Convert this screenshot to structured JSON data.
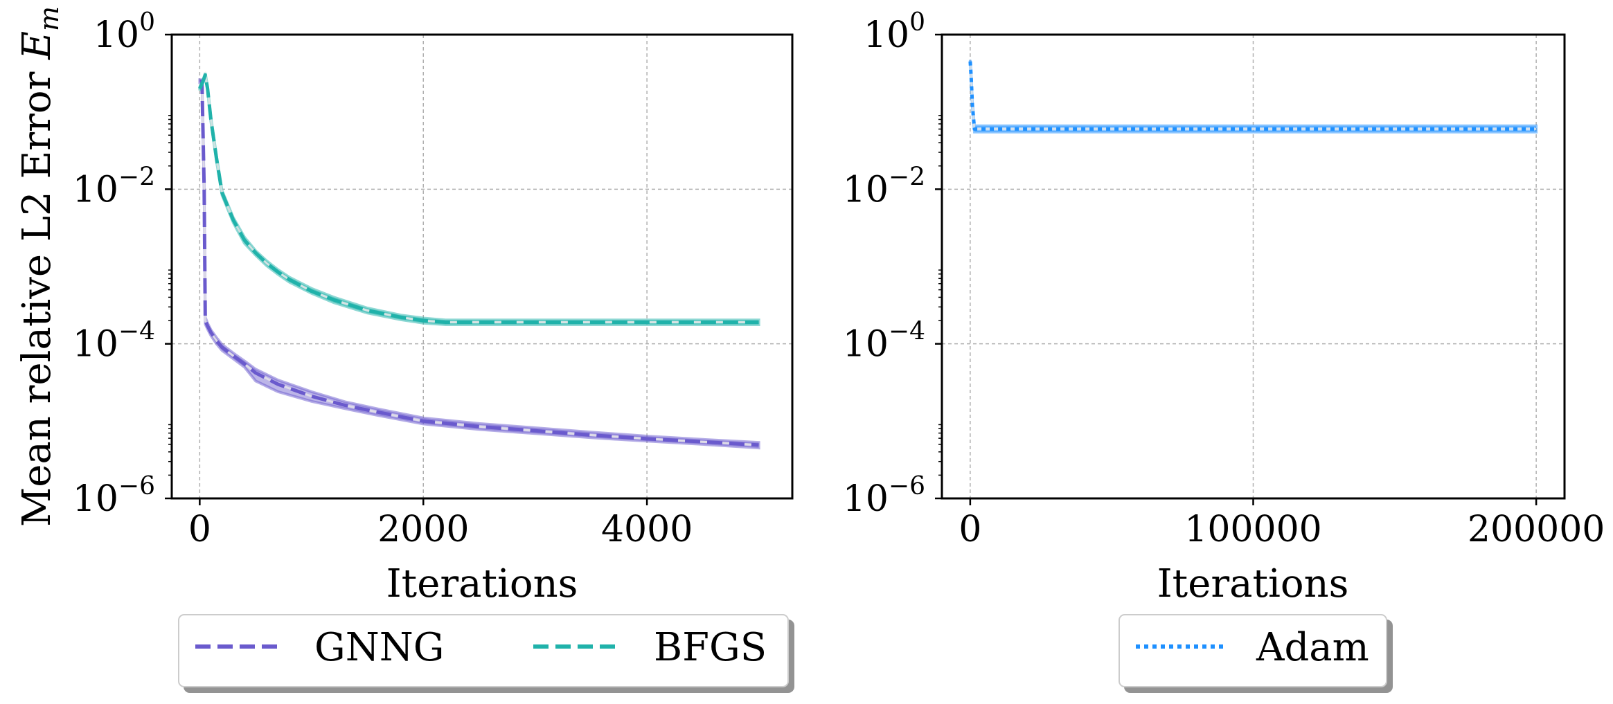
{
  "chart_data": [
    {
      "type": "line",
      "xlabel": "Iterations",
      "ylabel": "Mean relative L2 Error",
      "ylabel_symbol": "E",
      "ylabel_subscript": "m",
      "yscale": "log",
      "xlim": [
        -250,
        5300
      ],
      "ylim": [
        1e-06,
        1
      ],
      "xticks": [
        0,
        2000,
        4000
      ],
      "xtick_labels": [
        "0",
        "2000",
        "4000"
      ],
      "yticks": [
        1,
        0.01,
        0.0001,
        1e-06
      ],
      "ytick_bases": [
        "10",
        "10",
        "10",
        "10"
      ],
      "ytick_exps": [
        "0",
        "−2",
        "−4",
        "−6"
      ],
      "grid": true,
      "legend_position": "bottom",
      "series": [
        {
          "name": "GNNG",
          "color": "#6a5acd",
          "style": "dashed",
          "x": [
            0,
            20,
            40,
            50,
            70,
            100,
            150,
            200,
            300,
            400,
            500,
            700,
            1000,
            1300,
            1600,
            2000,
            2500,
            3000,
            3500,
            4000,
            4500,
            5000
          ],
          "y": [
            0.25,
            0.25,
            0.01,
            0.0002,
            0.00017,
            0.00014,
            0.00011,
            9e-05,
            7e-05,
            5.5e-05,
            4.2e-05,
            3e-05,
            2.1e-05,
            1.6e-05,
            1.3e-05,
            1e-05,
            8.5e-06,
            7.5e-06,
            6.6e-06,
            5.9e-06,
            5.4e-06,
            4.9e-06
          ],
          "band_lower": [
            0.24,
            0.24,
            0.009,
            0.00018,
            0.000155,
            0.000128,
            0.0001,
            8.2e-05,
            6.4e-05,
            5e-05,
            3.3e-05,
            2.4e-05,
            1.8e-05,
            1.45e-05,
            1.18e-05,
            9.2e-06,
            7.8e-06,
            6.9e-06,
            6.1e-06,
            5.5e-06,
            5e-06,
            4.5e-06
          ],
          "band_upper": [
            0.26,
            0.26,
            0.011,
            0.00022,
            0.000185,
            0.000152,
            0.00012,
            9.8e-05,
            7.6e-05,
            6e-05,
            4.7e-05,
            3.4e-05,
            2.4e-05,
            1.78e-05,
            1.43e-05,
            1.1e-05,
            9.3e-06,
            8.2e-06,
            7.2e-06,
            6.4e-06,
            5.8e-06,
            5.3e-06
          ]
        },
        {
          "name": "BFGS",
          "color": "#20b2aa",
          "style": "dashed",
          "x": [
            0,
            30,
            50,
            70,
            100,
            150,
            200,
            300,
            400,
            500,
            600,
            700,
            800,
            1000,
            1200,
            1500,
            1800,
            2000,
            2200,
            2500,
            3000,
            4000,
            5000
          ],
          "y": [
            0.2,
            0.25,
            0.3,
            0.2,
            0.08,
            0.025,
            0.009,
            0.004,
            0.0022,
            0.0015,
            0.0011,
            0.00085,
            0.00068,
            0.00048,
            0.00037,
            0.00027,
            0.00022,
            0.0002,
            0.00019,
            0.00019,
            0.00019,
            0.00019,
            0.00019
          ],
          "band_lower": [
            0.19,
            0.24,
            0.28,
            0.19,
            0.075,
            0.023,
            0.0084,
            0.0037,
            0.002,
            0.0014,
            0.00102,
            0.00079,
            0.00063,
            0.00045,
            0.00034,
            0.00025,
            0.000205,
            0.000185,
            0.000177,
            0.000177,
            0.000177,
            0.000177,
            0.000177
          ],
          "band_upper": [
            0.21,
            0.26,
            0.32,
            0.21,
            0.085,
            0.027,
            0.0096,
            0.0043,
            0.0024,
            0.0016,
            0.00118,
            0.00091,
            0.00073,
            0.00052,
            0.0004,
            0.00029,
            0.000235,
            0.000215,
            0.000203,
            0.000203,
            0.000203,
            0.000203,
            0.000203
          ]
        }
      ]
    },
    {
      "type": "line",
      "xlabel": "Iterations",
      "ylabel": "",
      "yscale": "log",
      "xlim": [
        -10000,
        210000
      ],
      "ylim": [
        1e-06,
        1
      ],
      "xticks": [
        0,
        100000,
        200000
      ],
      "xtick_labels": [
        "0",
        "100000",
        "200000"
      ],
      "yticks": [
        1,
        0.01,
        0.0001,
        1e-06
      ],
      "ytick_bases": [
        "10",
        "10",
        "10",
        "10"
      ],
      "ytick_exps": [
        "0",
        "−2",
        "−4",
        "−6"
      ],
      "grid": true,
      "legend_position": "bottom",
      "series": [
        {
          "name": "Adam",
          "color": "#1e90ff",
          "style": "dotted",
          "x": [
            0,
            300,
            800,
            1500,
            3000,
            50000,
            100000,
            150000,
            200000
          ],
          "y": [
            0.45,
            0.3,
            0.12,
            0.06,
            0.06,
            0.06,
            0.06,
            0.06,
            0.06
          ],
          "band_lower": [
            0.43,
            0.28,
            0.11,
            0.055,
            0.055,
            0.055,
            0.055,
            0.055,
            0.055
          ],
          "band_upper": [
            0.47,
            0.32,
            0.13,
            0.066,
            0.066,
            0.066,
            0.066,
            0.066,
            0.066
          ]
        }
      ]
    }
  ]
}
